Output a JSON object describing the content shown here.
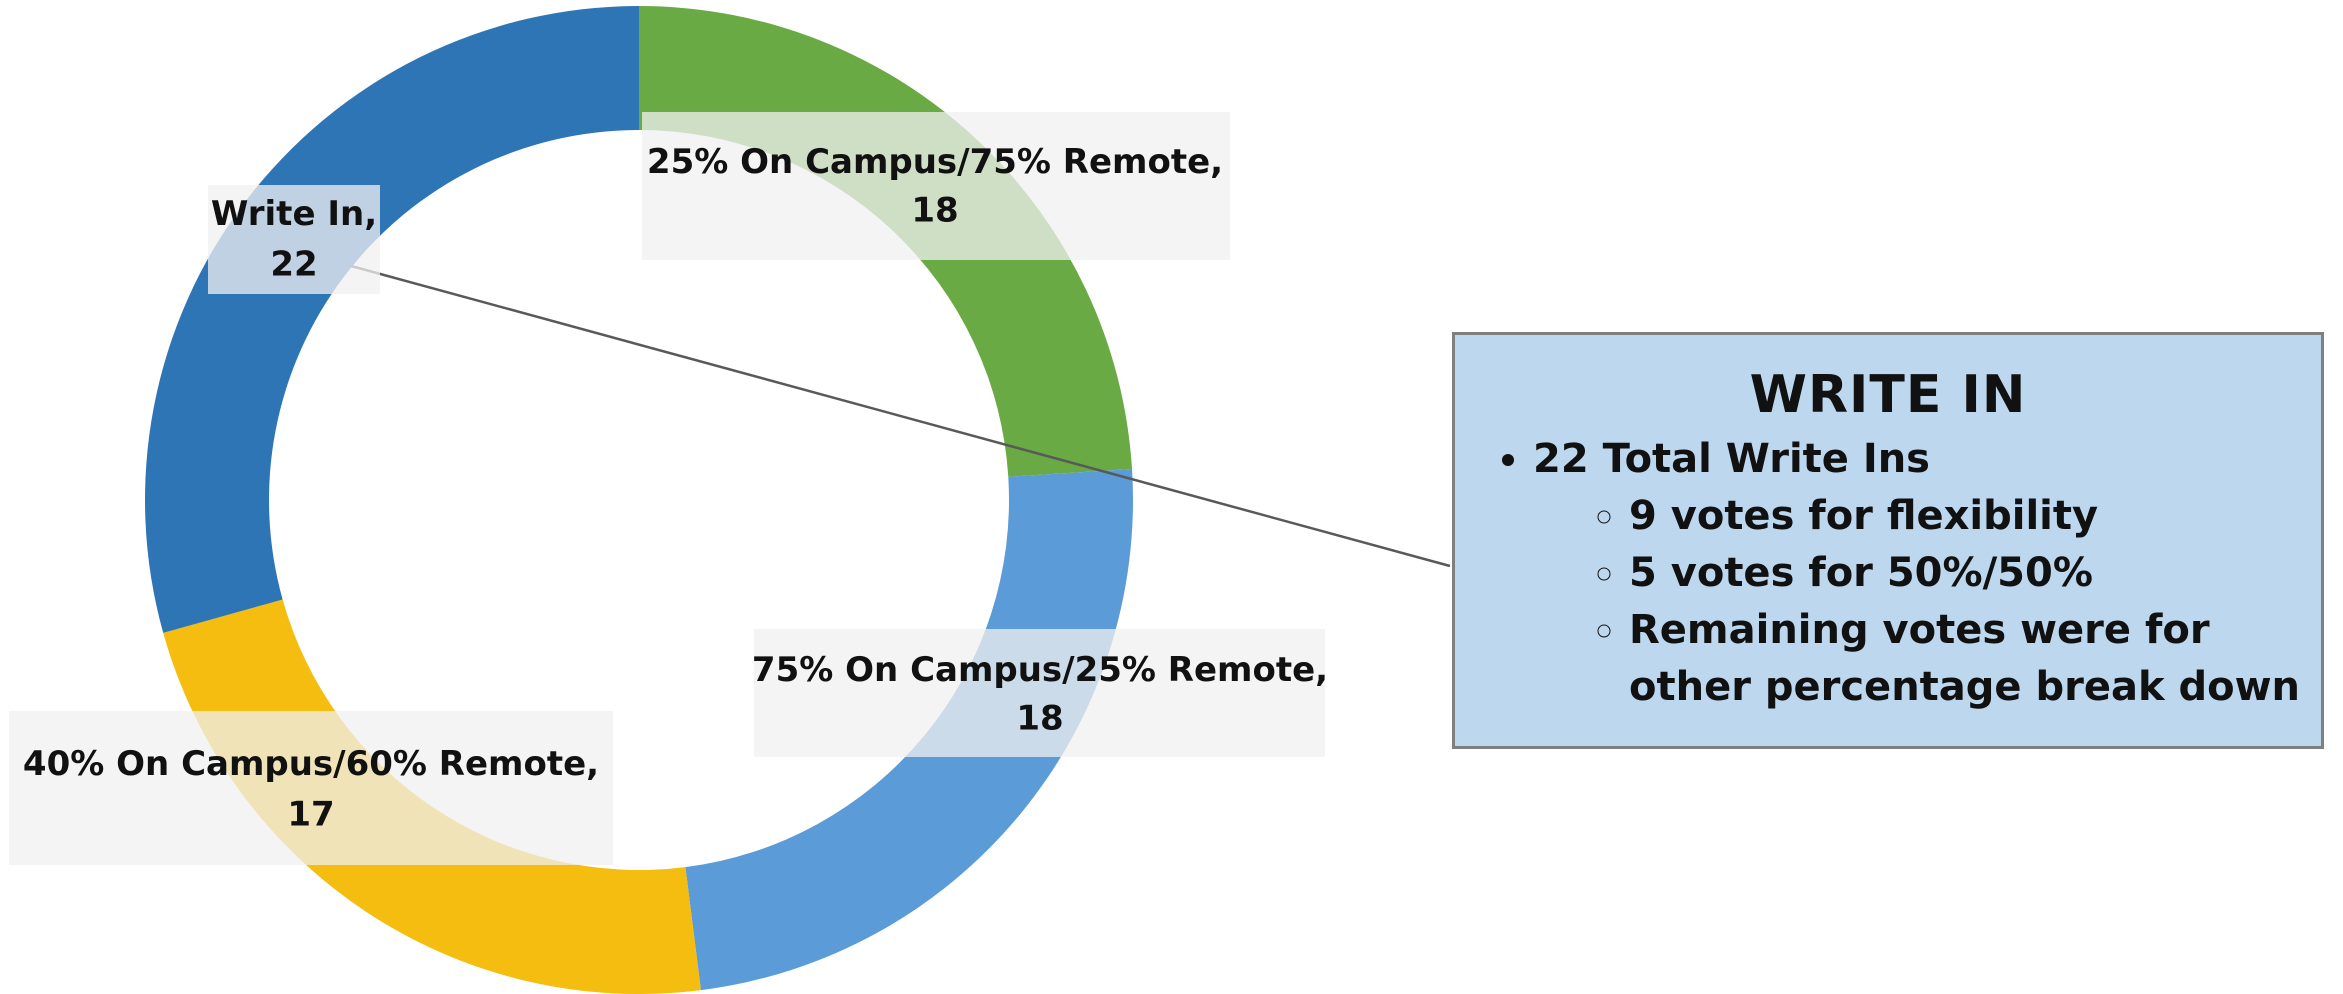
{
  "chart_data": {
    "type": "donut",
    "categories": [
      "25% On Campus/75% Remote",
      "75% On Campus/25% Remote",
      "40% On Campus/60% Remote",
      "Write In"
    ],
    "values": [
      18,
      18,
      17,
      22
    ],
    "colors": [
      "#6aaa44",
      "#5b9bd8",
      "#f4bd10",
      "#2e75b6"
    ],
    "label_separator": ","
  },
  "callout": {
    "title": "WRITE IN",
    "items": [
      {
        "text": "22 Total Write Ins",
        "subitems": [
          "9 votes for flexibility",
          "5 votes for 50%/50%",
          "Remaining votes were for other percentage break down"
        ]
      }
    ]
  }
}
